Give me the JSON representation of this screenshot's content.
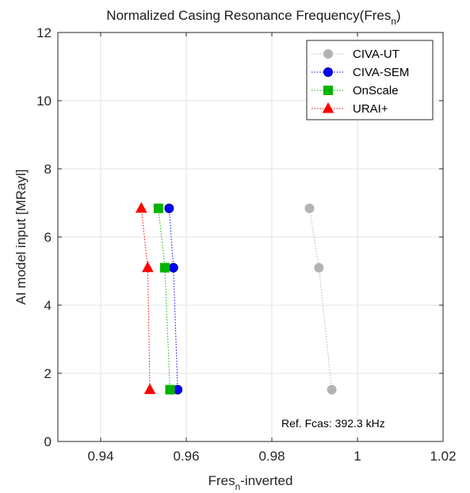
{
  "chart_data": {
    "type": "scatter",
    "title": "Normalized Casing Resonance Frequency(Fres",
    "title_subscript": "n",
    "title_suffix": ")",
    "xlabel": "Fres",
    "xlabel_subscript": "n",
    "xlabel_suffix": "-inverted",
    "ylabel": "AI model input [MRayl]",
    "xlim": [
      0.93,
      1.02
    ],
    "ylim": [
      0,
      12
    ],
    "xticks": [
      0.94,
      0.96,
      0.98,
      1,
      1.02
    ],
    "xtick_labels": [
      "0.94",
      "0.96",
      "0.98",
      "1",
      "1.02"
    ],
    "yticks": [
      0,
      2,
      4,
      6,
      8,
      10,
      12
    ],
    "ytick_labels": [
      "0",
      "2",
      "4",
      "6",
      "8",
      "10",
      "12"
    ],
    "grid": true,
    "legend_position": "top-right",
    "annotation": "Ref. Fcas: 392.3 kHz",
    "series": [
      {
        "name": "CIVA-UT",
        "marker": "circle",
        "color": "#b3b3b3",
        "x": [
          0.994,
          0.991,
          0.9888
        ],
        "y": [
          1.52,
          5.1,
          6.84
        ]
      },
      {
        "name": "CIVA-SEM",
        "marker": "circle",
        "color": "#0000ff",
        "x": [
          0.958,
          0.957,
          0.956
        ],
        "y": [
          1.52,
          5.1,
          6.84
        ]
      },
      {
        "name": "OnScale",
        "marker": "square",
        "color": "#00b300",
        "x": [
          0.9562,
          0.955,
          0.9535
        ],
        "y": [
          1.52,
          5.1,
          6.84
        ]
      },
      {
        "name": "URAI+",
        "marker": "triangle",
        "color": "#ff0000",
        "x": [
          0.9515,
          0.951,
          0.9495
        ],
        "y": [
          1.52,
          5.1,
          6.84
        ]
      }
    ]
  }
}
